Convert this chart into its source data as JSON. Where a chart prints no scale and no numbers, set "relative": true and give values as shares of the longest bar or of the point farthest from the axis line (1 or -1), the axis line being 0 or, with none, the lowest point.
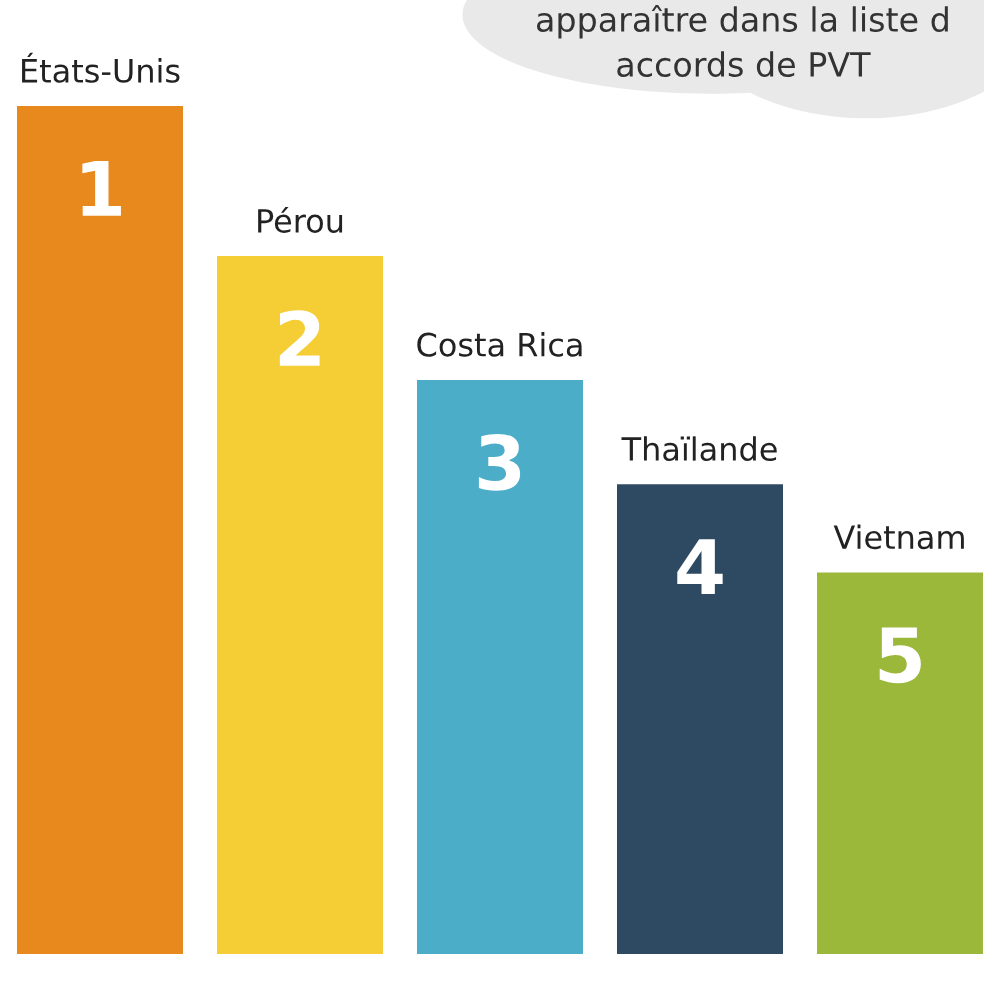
{
  "chart_data": {
    "type": "bar",
    "relative": true,
    "categories": [
      "États-Unis",
      "Pérou",
      "Costa Rica",
      "Thaïlande",
      "Vietnam"
    ],
    "values": [
      1,
      0.823,
      0.677,
      0.554,
      0.45
    ],
    "colors": [
      "#e8891e",
      "#f5cd35",
      "#4badc8",
      "#2e4a63",
      "#9cb83a"
    ],
    "annotations": [
      "apparaître dans la liste d\naccords de PVT",
      "1",
      "2",
      "3",
      "4",
      "5"
    ]
  }
}
